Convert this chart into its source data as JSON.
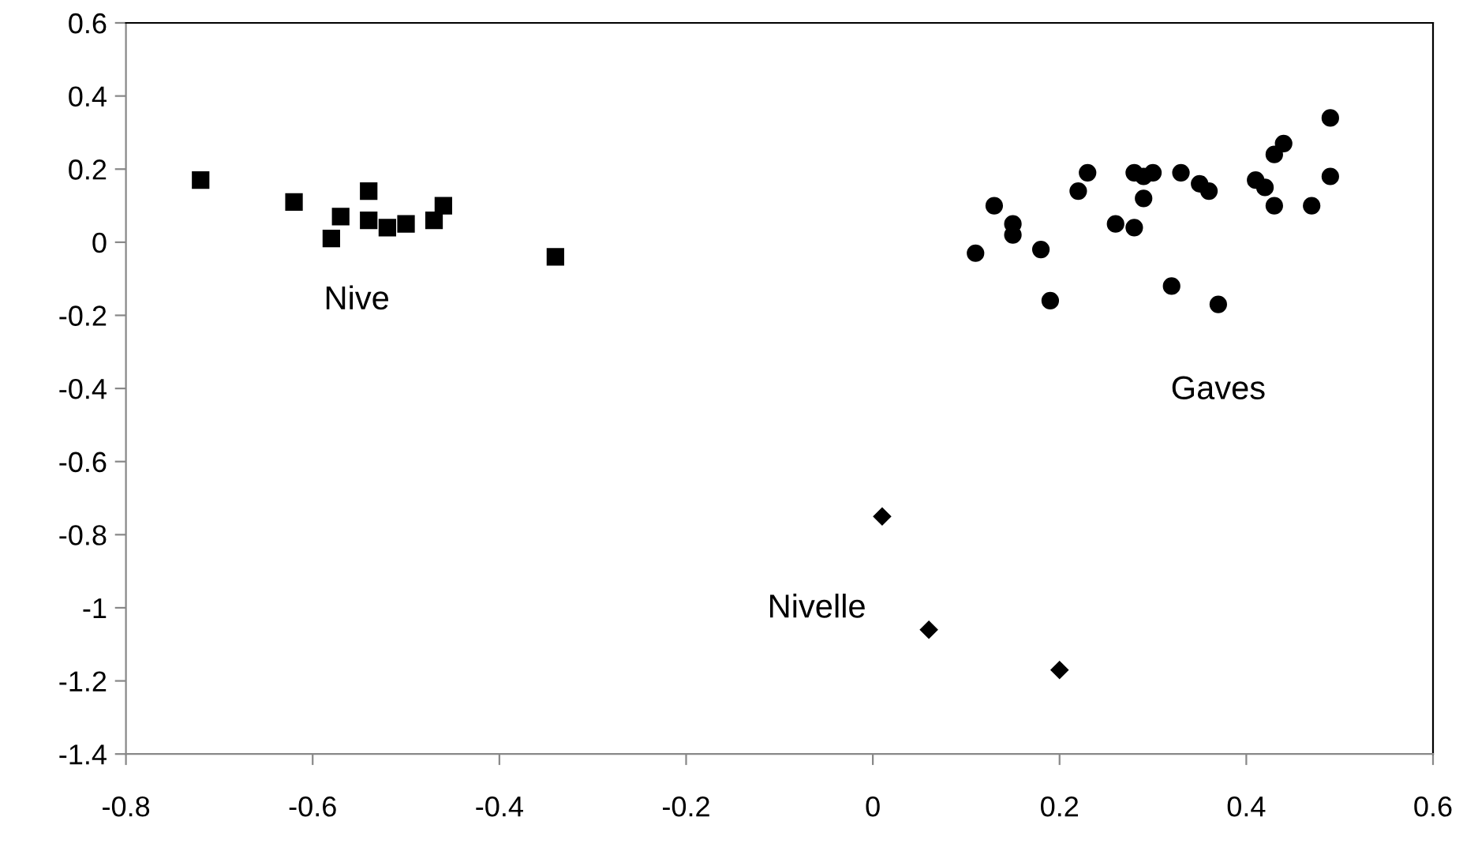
{
  "chart_data": {
    "type": "scatter",
    "xlim": [
      -0.8,
      0.6
    ],
    "xticks": [
      -0.8,
      -0.6,
      -0.4,
      -0.2,
      0,
      0.2,
      0.4,
      0.6
    ],
    "ylim": [
      -1.4,
      0.6
    ],
    "yticks": [
      -1.4,
      -1.2,
      -1,
      -0.8,
      -0.6,
      -0.4,
      -0.2,
      0,
      0.2,
      0.4,
      0.6
    ],
    "grid": false,
    "legend": false,
    "series": [
      {
        "name": "Nive",
        "color": "#000000",
        "marker": "square",
        "x": [
          -0.72,
          -0.62,
          -0.54,
          -0.57,
          -0.58,
          -0.54,
          -0.52,
          -0.5,
          -0.47,
          -0.46,
          -0.34
        ],
        "values": [
          0.17,
          0.11,
          0.14,
          0.07,
          0.01,
          0.06,
          0.04,
          0.05,
          0.06,
          0.1,
          -0.04
        ]
      },
      {
        "name": "Nivelle",
        "color": "#000000",
        "marker": "diamond",
        "x": [
          0.01,
          0.06,
          0.2
        ],
        "values": [
          -0.75,
          -1.06,
          -1.17
        ]
      },
      {
        "name": "Gaves",
        "color": "#000000",
        "marker": "circle",
        "x": [
          0.11,
          0.13,
          0.15,
          0.15,
          0.18,
          0.19,
          0.22,
          0.23,
          0.26,
          0.28,
          0.28,
          0.29,
          0.29,
          0.3,
          0.32,
          0.33,
          0.35,
          0.36,
          0.37,
          0.41,
          0.42,
          0.43,
          0.43,
          0.44,
          0.47,
          0.49,
          0.49
        ],
        "values": [
          -0.03,
          0.1,
          0.05,
          0.02,
          -0.02,
          -0.16,
          0.14,
          0.19,
          0.05,
          0.04,
          0.19,
          0.18,
          0.12,
          0.19,
          -0.12,
          0.19,
          0.16,
          0.14,
          -0.17,
          0.17,
          0.15,
          0.1,
          0.24,
          0.27,
          0.1,
          0.18,
          0.34
        ]
      }
    ]
  }
}
